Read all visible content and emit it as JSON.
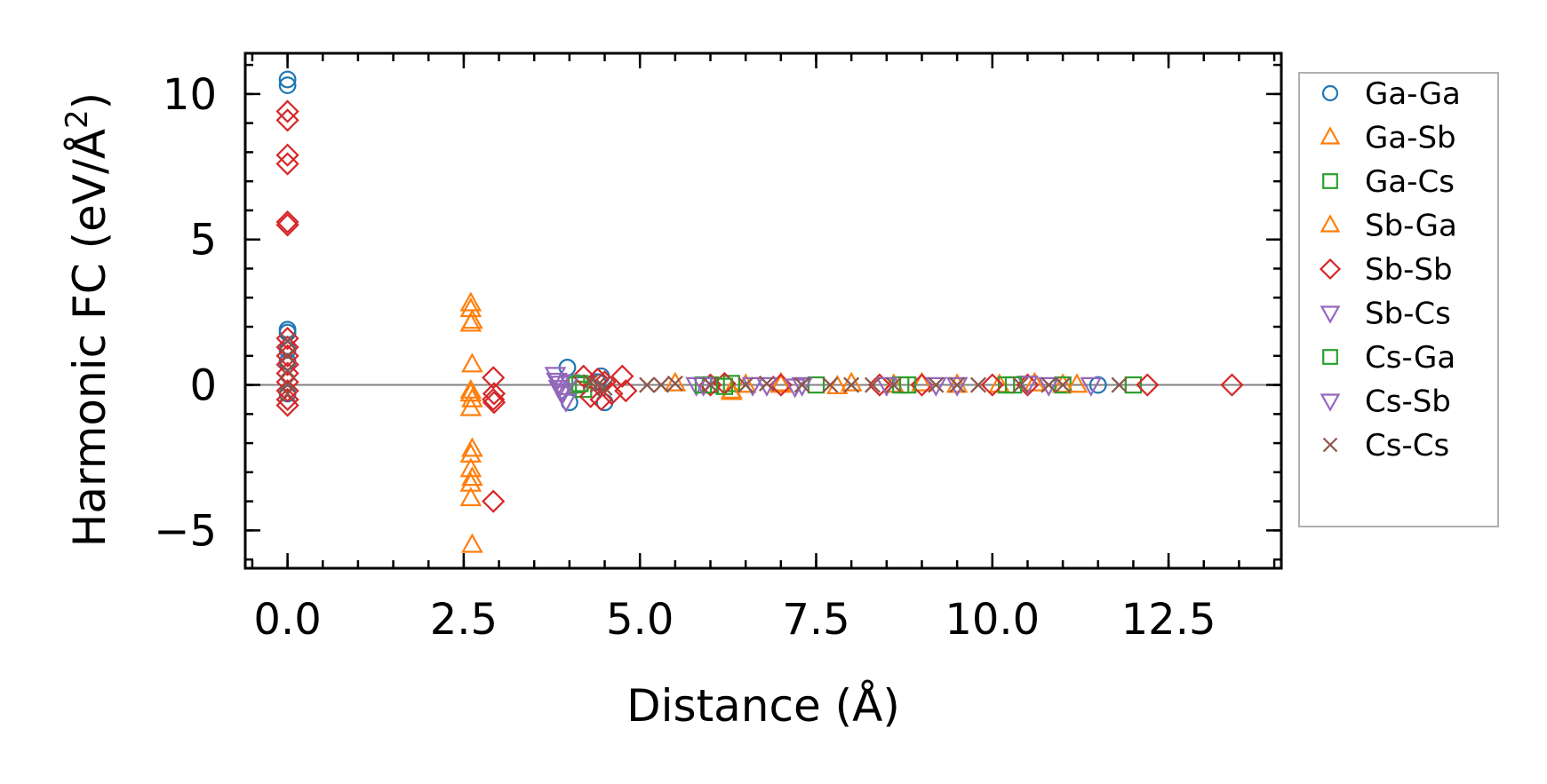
{
  "chart_data": {
    "type": "scatter",
    "title": "",
    "xlabel": "Distance (Å)",
    "ylabel": "Harmonic FC (eV/Å²)",
    "ylabel_base": "Harmonic FC (eV/Å",
    "ylabel_sup": "2",
    "ylabel_close": ")",
    "xlim": [
      -0.6,
      14.1
    ],
    "ylim": [
      -6.3,
      11.4
    ],
    "xticks": [
      0.0,
      2.5,
      5.0,
      7.5,
      10.0,
      12.5
    ],
    "xtick_labels": [
      "0.0",
      "2.5",
      "5.0",
      "7.5",
      "10.0",
      "12.5"
    ],
    "yticks": [
      -5,
      0,
      5,
      10
    ],
    "ytick_labels": [
      "−5",
      "0",
      "5",
      "10"
    ],
    "xminor_step": 0.5,
    "yminor_step": 1,
    "grid": false,
    "zero_line": true,
    "legend_position": "outside-right",
    "series": [
      {
        "name": "Ga-Ga",
        "marker": "circle",
        "color": "#1f77b4",
        "x": [
          0,
          0,
          0,
          0,
          0,
          0,
          0,
          3.97,
          4.0,
          4.45,
          4.5,
          4.4,
          11.5
        ],
        "y": [
          10.5,
          10.3,
          1.9,
          1.8,
          1.2,
          0.8,
          -0.3,
          0.6,
          -0.6,
          0.3,
          -0.6,
          0.1,
          0.0
        ]
      },
      {
        "name": "Ga-Sb",
        "marker": "triangle-up",
        "color": "#ff7f0e",
        "x": [
          2.6,
          2.6,
          2.62,
          2.6,
          2.62,
          2.6,
          2.62,
          2.6,
          2.62,
          2.6,
          2.6,
          2.62,
          2.6,
          2.6,
          2.62,
          2.6,
          5.5,
          6.3,
          6.5,
          7.0,
          7.8,
          8.6,
          9.0,
          10.1,
          10.6,
          11.0
        ],
        "y": [
          2.8,
          2.6,
          2.2,
          2.1,
          0.7,
          -0.3,
          -0.5,
          -0.8,
          -2.2,
          -2.4,
          -2.9,
          -3.2,
          -3.4,
          -3.9,
          -5.5,
          -0.2,
          0.05,
          -0.2,
          0.0,
          0.05,
          -0.05,
          0.0,
          0.05,
          0.0,
          0.05,
          0.0
        ]
      },
      {
        "name": "Ga-Cs",
        "marker": "square",
        "color": "#2ca02c",
        "x": [
          4.1,
          4.2,
          6.0,
          6.3,
          7.5,
          8.7,
          10.2,
          11.0,
          12.0
        ],
        "y": [
          0.0,
          -0.15,
          0.0,
          0.05,
          0.0,
          0.0,
          0.0,
          0.0,
          0.0
        ]
      },
      {
        "name": "Sb-Ga",
        "marker": "triangle-up",
        "color": "#ff7f0e",
        "x": [
          6.3,
          7.0,
          8.0,
          9.5,
          11.2
        ],
        "y": [
          -0.25,
          0.0,
          0.05,
          0.0,
          0.0
        ]
      },
      {
        "name": "Sb-Sb",
        "marker": "diamond",
        "color": "#d62728",
        "x": [
          0,
          0,
          0,
          0,
          0,
          0,
          0,
          0,
          0,
          0,
          0,
          0,
          0,
          0,
          0,
          2.92,
          2.93,
          2.92,
          2.93,
          2.92,
          4.2,
          4.3,
          4.4,
          4.45,
          4.5,
          4.6,
          4.75,
          4.8,
          6.0,
          6.2,
          7.0,
          8.4,
          9.0,
          10.0,
          10.5,
          12.2,
          13.4
        ],
        "y": [
          9.4,
          9.1,
          7.9,
          7.6,
          5.6,
          5.5,
          1.6,
          1.3,
          1.0,
          0.7,
          0.4,
          0.1,
          -0.2,
          -0.5,
          -0.7,
          0.25,
          -0.3,
          -0.5,
          -0.6,
          -4.0,
          0.3,
          -0.4,
          0.2,
          -0.5,
          0.1,
          -0.3,
          0.3,
          -0.2,
          0.0,
          0.05,
          0.0,
          0.0,
          0.0,
          0.0,
          0.0,
          0.0,
          0.0
        ]
      },
      {
        "name": "Sb-Cs",
        "marker": "triangle-down",
        "color": "#9467bd",
        "x": [
          3.8,
          3.82,
          3.85,
          3.9,
          3.95,
          4.0,
          5.8,
          6.6,
          7.2,
          8.5,
          9.5,
          10.5,
          11.4
        ],
        "y": [
          0.35,
          0.15,
          -0.1,
          -0.3,
          -0.55,
          0.1,
          0.0,
          0.0,
          -0.05,
          0.0,
          0.0,
          0.05,
          0.0
        ]
      },
      {
        "name": "Cs-Ga",
        "marker": "square",
        "color": "#2ca02c",
        "x": [
          4.15,
          5.9,
          6.2,
          8.8,
          10.3
        ],
        "y": [
          0.05,
          0.0,
          -0.05,
          0.0,
          0.0
        ]
      },
      {
        "name": "Cs-Sb",
        "marker": "triangle-down",
        "color": "#9467bd",
        "x": [
          3.85,
          3.9,
          5.9,
          6.8,
          7.3,
          9.2,
          10.8
        ],
        "y": [
          0.05,
          -0.2,
          0.0,
          0.0,
          0.0,
          0.0,
          0.0
        ]
      },
      {
        "name": "Cs-Cs",
        "marker": "cross",
        "color": "#8c564b",
        "x": [
          0,
          0,
          0,
          0,
          0,
          4.3,
          4.4,
          4.5,
          5.1,
          5.3,
          5.5,
          6.0,
          6.5,
          6.8,
          7.3,
          7.7,
          8.0,
          8.3,
          8.6,
          9.2,
          9.5,
          9.8,
          10.4,
          10.8,
          11.0,
          11.8
        ],
        "y": [
          1.5,
          1.0,
          0.5,
          0.0,
          -0.3,
          0.1,
          0.0,
          -0.1,
          0.0,
          0.0,
          0.05,
          0.0,
          0.0,
          0.05,
          0.0,
          0.0,
          0.0,
          0.0,
          0.0,
          0.0,
          0.0,
          0.0,
          0.0,
          0.0,
          0.0,
          0.0
        ]
      }
    ]
  }
}
